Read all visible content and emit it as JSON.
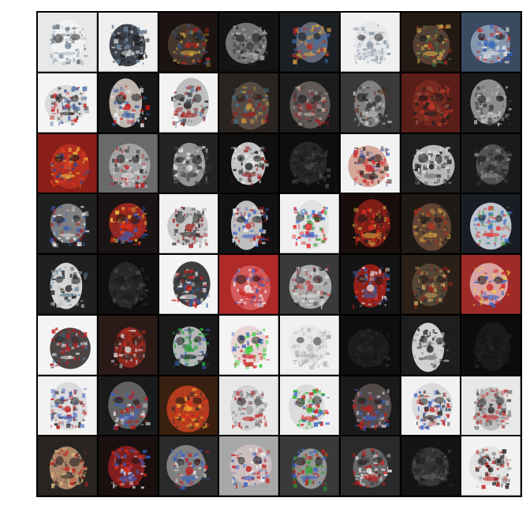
{
  "image": {
    "subject": "clown-face-samples",
    "grid": {
      "rows": 8,
      "cols": 8
    },
    "tiles": [
      {
        "bg": "#e8e8e8",
        "face": "#f2f2f2",
        "features": [
          "#7a8a99",
          "#b0b8c0",
          "#5a6470"
        ],
        "tone": "light"
      },
      {
        "bg": "#efefef",
        "face": "#2a3038",
        "features": [
          "#6f8aa3",
          "#c9c9c9",
          "#1a1a1a"
        ],
        "tone": "dark-on-light"
      },
      {
        "bg": "#1b1410",
        "face": "#4a3a30",
        "features": [
          "#b02020",
          "#c9a040",
          "#3a6090"
        ],
        "tone": "dark"
      },
      {
        "bg": "#141414",
        "face": "#7d7d7d",
        "features": [
          "#3a3a3a",
          "#aaaaaa",
          "#222222"
        ],
        "tone": "dark"
      },
      {
        "bg": "#1c1f24",
        "face": "#6a7080",
        "features": [
          "#c0302a",
          "#dba040",
          "#3a70b0"
        ],
        "tone": "dark"
      },
      {
        "bg": "#f0f0f0",
        "face": "#e4e6e8",
        "features": [
          "#8896a6",
          "#c0c6cc",
          "#a0a8b0"
        ],
        "tone": "light"
      },
      {
        "bg": "#241a14",
        "face": "#5a4638",
        "features": [
          "#b03020",
          "#d9b050",
          "#406a40"
        ],
        "tone": "dark"
      },
      {
        "bg": "#3a4a60",
        "face": "#8ea0b8",
        "features": [
          "#2a60c0",
          "#e0e0e0",
          "#c03030"
        ],
        "tone": "mid"
      },
      {
        "bg": "#f4f4f4",
        "face": "#d8d8d8",
        "features": [
          "#c02020",
          "#2a2a2a",
          "#4060a0"
        ],
        "tone": "light"
      },
      {
        "bg": "#181818",
        "face": "#d0c8c0",
        "features": [
          "#d01818",
          "#3a60a0",
          "#f0f0f0"
        ],
        "tone": "dark"
      },
      {
        "bg": "#f2f2f2",
        "face": "#b8b8b8",
        "features": [
          "#2a2a2a",
          "#a02020",
          "#6080a0"
        ],
        "tone": "light"
      },
      {
        "bg": "#2a2420",
        "face": "#5a5048",
        "features": [
          "#c09040",
          "#a02020",
          "#4a6a80"
        ],
        "tone": "dark"
      },
      {
        "bg": "#1c1c1c",
        "face": "#6a6060",
        "features": [
          "#a02020",
          "#c0b0a0",
          "#3a3a3a"
        ],
        "tone": "dark"
      },
      {
        "bg": "#3a3a3a",
        "face": "#8a8a8a",
        "features": [
          "#2a2a2a",
          "#c0c0c0",
          "#603020"
        ],
        "tone": "mid"
      },
      {
        "bg": "#5a1e18",
        "face": "#7a2a20",
        "features": [
          "#c03a2a",
          "#202020",
          "#905040"
        ],
        "tone": "red"
      },
      {
        "bg": "#1a1a1a",
        "face": "#9a9a9a",
        "features": [
          "#3a3a3a",
          "#c8c8c8",
          "#505050"
        ],
        "tone": "dark"
      },
      {
        "bg": "#8a1e18",
        "face": "#b83020",
        "features": [
          "#e04020",
          "#f0c040",
          "#2a4a8a"
        ],
        "tone": "red"
      },
      {
        "bg": "#6a6a6a",
        "face": "#a8a8a8",
        "features": [
          "#c02020",
          "#e0e0e0",
          "#303030"
        ],
        "tone": "mid"
      },
      {
        "bg": "#242424",
        "face": "#a0a0a0",
        "features": [
          "#e8e8e8",
          "#3a3a3a",
          "#6a6a6a"
        ],
        "tone": "dark"
      },
      {
        "bg": "#101010",
        "face": "#d8d8d8",
        "features": [
          "#1a1a1a",
          "#a02020",
          "#e8e8e8"
        ],
        "tone": "dark"
      },
      {
        "bg": "#0e0e0e",
        "face": "#2a2a2a",
        "features": [
          "#4a4a4a",
          "#1a1a1a",
          "#3a3a3a"
        ],
        "tone": "dark"
      },
      {
        "bg": "#f2f2f2",
        "face": "#d0a090",
        "features": [
          "#d02020",
          "#2a2a2a",
          "#3a60c0"
        ],
        "tone": "light"
      },
      {
        "bg": "#1e1e1e",
        "face": "#c8c8c8",
        "features": [
          "#1a1a1a",
          "#6a6a6a",
          "#f0f0f0"
        ],
        "tone": "dark"
      },
      {
        "bg": "#1a1a1a",
        "face": "#5a5a5a",
        "features": [
          "#2a2a2a",
          "#8a8a8a",
          "#3a3a3a"
        ],
        "tone": "dark"
      },
      {
        "bg": "#202020",
        "face": "#8a8a8a",
        "features": [
          "#3a60c0",
          "#e0e0e0",
          "#a02020"
        ],
        "tone": "dark"
      },
      {
        "bg": "#1a1414",
        "face": "#a02a20",
        "features": [
          "#e03020",
          "#3a60c0",
          "#f0d040"
        ],
        "tone": "red"
      },
      {
        "bg": "#f0f0f0",
        "face": "#c0c0c0",
        "features": [
          "#a02020",
          "#303030",
          "#808080"
        ],
        "tone": "light"
      },
      {
        "bg": "#121212",
        "face": "#d0d0d0",
        "features": [
          "#c02020",
          "#3a60c0",
          "#f0f0f0"
        ],
        "tone": "dark"
      },
      {
        "bg": "#f0f0f0",
        "face": "#e0e0e0",
        "features": [
          "#e02020",
          "#3a70d0",
          "#40a040"
        ],
        "tone": "light"
      },
      {
        "bg": "#1a0e0c",
        "face": "#8a2018",
        "features": [
          "#e03020",
          "#d0a040",
          "#202020"
        ],
        "tone": "red"
      },
      {
        "bg": "#201a16",
        "face": "#6a4a38",
        "features": [
          "#b03020",
          "#d0a040",
          "#2a2a2a"
        ],
        "tone": "dark"
      },
      {
        "bg": "#1a1e24",
        "face": "#d0d8e0",
        "features": [
          "#3a70c0",
          "#e03030",
          "#40a040"
        ],
        "tone": "dark"
      },
      {
        "bg": "#202020",
        "face": "#e8e8e8",
        "features": [
          "#1a1a1a",
          "#4a6a80",
          "#c0c0c0"
        ],
        "tone": "dark"
      },
      {
        "bg": "#101010",
        "face": "#2a2a2a",
        "features": [
          "#3a3a3a",
          "#1a1a1a",
          "#4a4a4a"
        ],
        "tone": "dark"
      },
      {
        "bg": "#f4f4f4",
        "face": "#2a2a2a",
        "features": [
          "#d02020",
          "#e0e0e0",
          "#3a60a0"
        ],
        "tone": "light"
      },
      {
        "bg": "#b02a2a",
        "face": "#d86060",
        "features": [
          "#f0f0f0",
          "#d01818",
          "#3a60c0"
        ],
        "tone": "red"
      },
      {
        "bg": "#3a3a3a",
        "face": "#b8b8b8",
        "features": [
          "#c03030",
          "#e0e0e0",
          "#2a2a2a"
        ],
        "tone": "mid"
      },
      {
        "bg": "#141414",
        "face": "#a02018",
        "features": [
          "#e0e0e0",
          "#3a60a0",
          "#d03020"
        ],
        "tone": "red"
      },
      {
        "bg": "#2a2018",
        "face": "#5a4a38",
        "features": [
          "#a02018",
          "#c0a060",
          "#303030"
        ],
        "tone": "dark"
      },
      {
        "bg": "#a02a28",
        "face": "#e0b0b0",
        "features": [
          "#d02020",
          "#3a60c0",
          "#f0d040"
        ],
        "tone": "red"
      },
      {
        "bg": "#f4f4f4",
        "face": "#3a3030",
        "features": [
          "#c02020",
          "#e0e0e0",
          "#4a6a80"
        ],
        "tone": "light"
      },
      {
        "bg": "#2a1a18",
        "face": "#9a2a20",
        "features": [
          "#e0e0e0",
          "#2a2a2a",
          "#d03020"
        ],
        "tone": "red"
      },
      {
        "bg": "#1a1a1a",
        "face": "#c8c8c8",
        "features": [
          "#2aa040",
          "#2a2a2a",
          "#3a60c0"
        ],
        "tone": "dark"
      },
      {
        "bg": "#f4f4f4",
        "face": "#e8d0d0",
        "features": [
          "#30d030",
          "#d02020",
          "#3a60c0"
        ],
        "tone": "light"
      },
      {
        "bg": "#f0f0f0",
        "face": "#e4e4e4",
        "features": [
          "#c0c0c0",
          "#a8a8a8",
          "#d0d0d0"
        ],
        "tone": "light"
      },
      {
        "bg": "#0e0e0e",
        "face": "#1e1e1e",
        "features": [
          "#2a2a2a",
          "#161616",
          "#242424"
        ],
        "tone": "dark"
      },
      {
        "bg": "#1e1e1e",
        "face": "#e4e4e4",
        "features": [
          "#1a1a1a",
          "#6a6a6a",
          "#c0c0c0"
        ],
        "tone": "dark"
      },
      {
        "bg": "#0c0c0c",
        "face": "#1c1c1c",
        "features": [
          "#2a2a2a",
          "#141414",
          "#202020"
        ],
        "tone": "dark"
      },
      {
        "bg": "#f2f2f2",
        "face": "#d8d8d8",
        "features": [
          "#c02020",
          "#3a60c0",
          "#202020"
        ],
        "tone": "light"
      },
      {
        "bg": "#1a1a1a",
        "face": "#6a6a6a",
        "features": [
          "#c02020",
          "#3a60c0",
          "#e0e0e0"
        ],
        "tone": "dark"
      },
      {
        "bg": "#3a2010",
        "face": "#c04020",
        "features": [
          "#f0a030",
          "#e03020",
          "#303030"
        ],
        "tone": "red"
      },
      {
        "bg": "#e8e8e8",
        "face": "#d0d0d0",
        "features": [
          "#a0a0a0",
          "#c02020",
          "#808080"
        ],
        "tone": "light"
      },
      {
        "bg": "#f0f0f0",
        "face": "#d8d8d8",
        "features": [
          "#30b030",
          "#d02020",
          "#3a60c0"
        ],
        "tone": "light"
      },
      {
        "bg": "#1a1a1a",
        "face": "#5a5050",
        "features": [
          "#c02020",
          "#3a60c0",
          "#c0c0c0"
        ],
        "tone": "dark"
      },
      {
        "bg": "#f2f2f2",
        "face": "#d8d8d8",
        "features": [
          "#c02020",
          "#2a2a2a",
          "#3a60c0"
        ],
        "tone": "light"
      },
      {
        "bg": "#e8e8e8",
        "face": "#b8b8b8",
        "features": [
          "#2a2a2a",
          "#c02020",
          "#808080"
        ],
        "tone": "light"
      },
      {
        "bg": "#2a2420",
        "face": "#b89070",
        "features": [
          "#c02020",
          "#303030",
          "#e0c080"
        ],
        "tone": "dark"
      },
      {
        "bg": "#1a1010",
        "face": "#8a2020",
        "features": [
          "#e03020",
          "#3a60c0",
          "#e0e0e0"
        ],
        "tone": "red"
      },
      {
        "bg": "#2a2a2a",
        "face": "#8a8a8a",
        "features": [
          "#c02020",
          "#3a60c0",
          "#f0f0f0"
        ],
        "tone": "dark"
      },
      {
        "bg": "#a8a8a8",
        "face": "#d0c0c0",
        "features": [
          "#c02020",
          "#3a60c0",
          "#f0f0f0"
        ],
        "tone": "mid"
      },
      {
        "bg": "#3a3a3a",
        "face": "#a0a0a0",
        "features": [
          "#30a030",
          "#3a60c0",
          "#c02020"
        ],
        "tone": "mid"
      },
      {
        "bg": "#2a2a2a",
        "face": "#707070",
        "features": [
          "#f0f0f0",
          "#c02020",
          "#3a3a3a"
        ],
        "tone": "dark"
      },
      {
        "bg": "#141414",
        "face": "#3a3a3a",
        "features": [
          "#2a2a2a",
          "#5a5a5a",
          "#1a1a1a"
        ],
        "tone": "dark"
      },
      {
        "bg": "#f2f2f2",
        "face": "#e0e0e0",
        "features": [
          "#1a1a1a",
          "#c02020",
          "#a0a0a0"
        ],
        "tone": "light"
      }
    ]
  }
}
